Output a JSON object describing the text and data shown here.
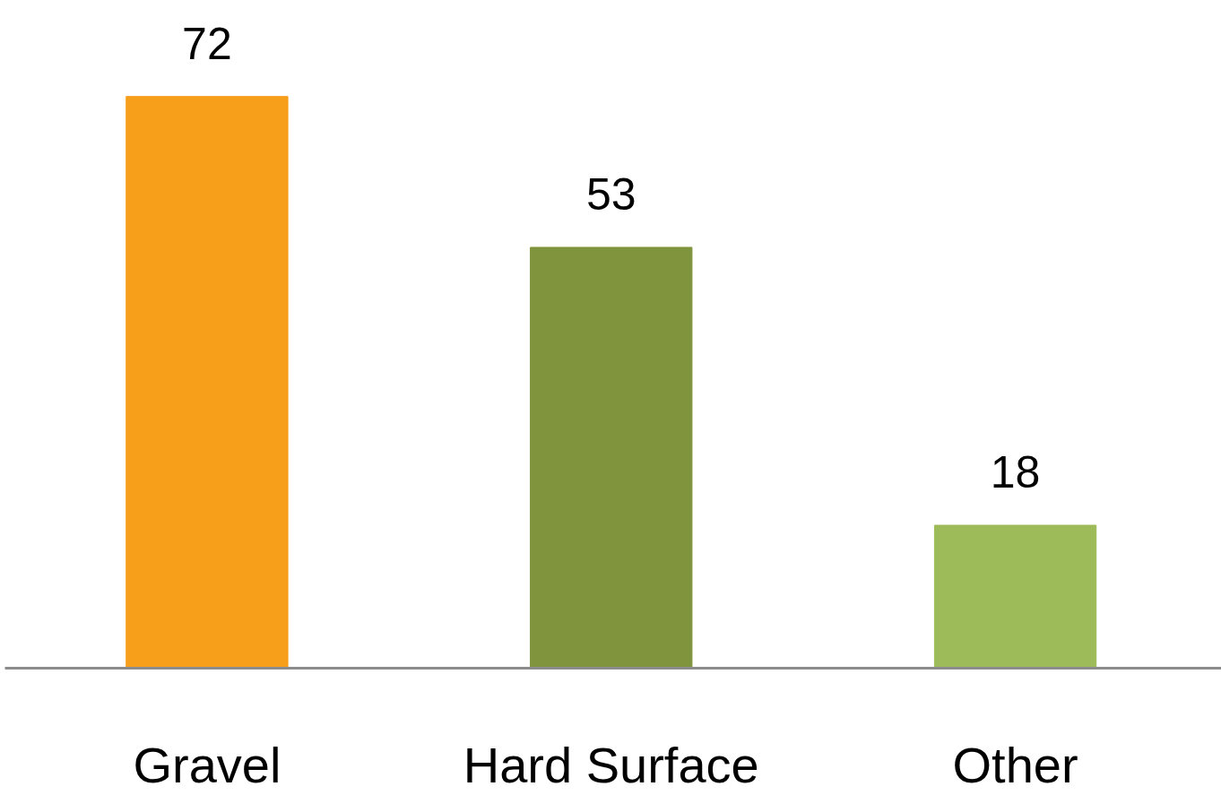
{
  "chart_data": {
    "type": "bar",
    "categories": [
      "Gravel",
      "Hard Surface",
      "Other"
    ],
    "values": [
      72,
      53,
      18
    ],
    "colors": [
      "#f79e1b",
      "#7f943c",
      "#9dbb59"
    ],
    "data_labels": true
  }
}
